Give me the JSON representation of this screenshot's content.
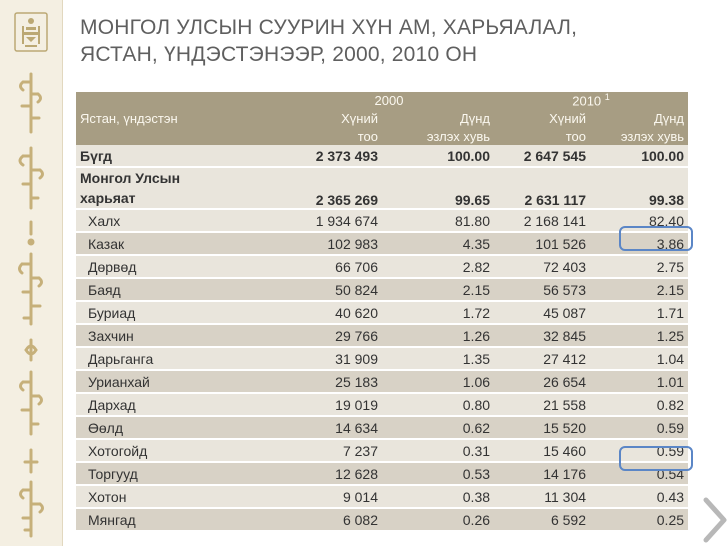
{
  "title_line1": "МОНГОЛ УЛСЫН СУУРИН ХҮН АМ, ХАРЬЯАЛАЛ,",
  "title_line2": "ЯСТАН, ҮНДЭСТЭНЭЭР, 2000, 2010 ОН",
  "table": {
    "year_2000": "2000",
    "year_2010": "2010",
    "year_2010_note": "1",
    "col_label": "Ястан, үндэстэн",
    "col_count_a": "Хүний",
    "col_count_b": "тоо",
    "col_share_a": "Дүнд",
    "col_share_b": "эзлэх хувь",
    "rows": [
      {
        "name": "Бүгд",
        "p2000": "2 373 493",
        "s2000": "100.00",
        "p2010": "2 647 545",
        "s2010": "100.00"
      },
      {
        "name_a": "Монгол Улсын",
        "name_b": "харьяат",
        "p2000": "2 365 269",
        "s2000": "99.65",
        "p2010": "2 631 117",
        "s2010": "99.38"
      },
      {
        "name": "Халх",
        "p2000": "1 934 674",
        "s2000": "81.80",
        "p2010": "2 168 141",
        "s2010": "82.40"
      },
      {
        "name": "Казак",
        "p2000": "102 983",
        "s2000": "4.35",
        "p2010": "101 526",
        "s2010": "3.86"
      },
      {
        "name": "Дөрвөд",
        "p2000": "66 706",
        "s2000": "2.82",
        "p2010": "72 403",
        "s2010": "2.75"
      },
      {
        "name": "Баяд",
        "p2000": "50 824",
        "s2000": "2.15",
        "p2010": "56 573",
        "s2010": "2.15"
      },
      {
        "name": "Буриад",
        "p2000": "40 620",
        "s2000": "1.72",
        "p2010": "45 087",
        "s2010": "1.71"
      },
      {
        "name": "Захчин",
        "p2000": "29 766",
        "s2000": "1.26",
        "p2010": "32 845",
        "s2010": "1.25"
      },
      {
        "name": "Дарьганга",
        "p2000": "31 909",
        "s2000": "1.35",
        "p2010": "27 412",
        "s2010": "1.04"
      },
      {
        "name": "Урианхай",
        "p2000": "25 183",
        "s2000": "1.06",
        "p2010": "26 654",
        "s2010": "1.01"
      },
      {
        "name": "Дархад",
        "p2000": "19 019",
        "s2000": "0.80",
        "p2010": "21 558",
        "s2010": "0.82"
      },
      {
        "name": "Өөлд",
        "p2000": "14 634",
        "s2000": "0.62",
        "p2010": "15 520",
        "s2010": "0.59"
      },
      {
        "name": "Хотогойд",
        "p2000": "7 237",
        "s2000": "0.31",
        "p2010": "15 460",
        "s2010": "0.59"
      },
      {
        "name": "Торгууд",
        "p2000": "12 628",
        "s2000": "0.53",
        "p2010": "14 176",
        "s2010": "0.54"
      },
      {
        "name": "Хотон",
        "p2000": "9 014",
        "s2000": "0.38",
        "p2010": "11 304",
        "s2010": "0.43"
      },
      {
        "name": "Мянгад",
        "p2000": "6 082",
        "s2000": "0.26",
        "p2010": "6 592",
        "s2010": "0.25"
      }
    ]
  },
  "colors": {
    "header_bg": "#a79d83",
    "row_light": "#e9e5dc",
    "row_dark": "#d8d2c6",
    "highlight": "#5b86c6",
    "title": "#5f5f5f"
  },
  "icons": {
    "emblem": "mongolia-soyombo-emblem-icon",
    "vertical_script": "mongolian-script-decoration",
    "next": "chevron-right-icon"
  }
}
